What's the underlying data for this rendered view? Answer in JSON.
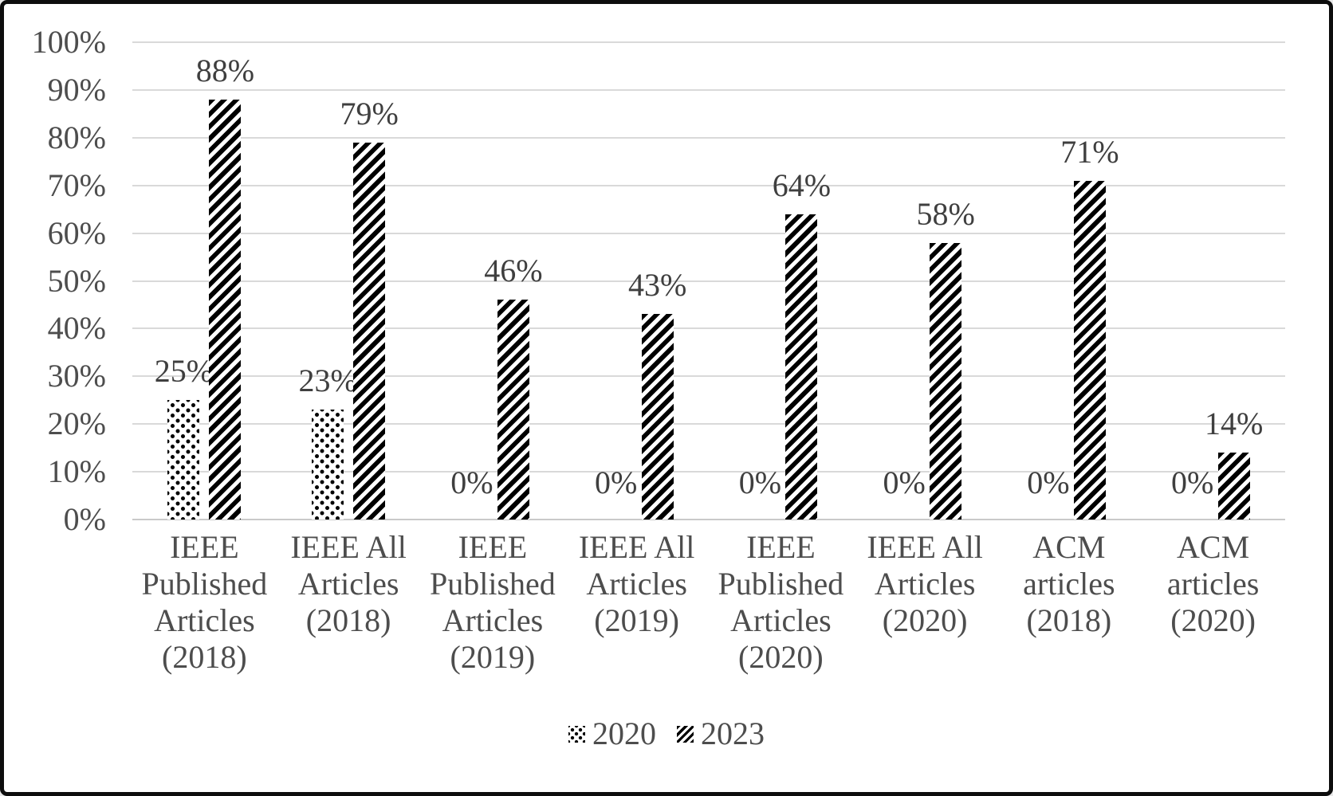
{
  "chart_data": {
    "type": "bar",
    "title": "",
    "xlabel": "",
    "ylabel": "",
    "categories": [
      "IEEE Published Articles (2018)",
      "IEEE All Articles (2018)",
      "IEEE Published Articles (2019)",
      "IEEE All Articles (2019)",
      "IEEE Published Articles (2020)",
      "IEEE All Articles (2020)",
      "ACM articles (2018)",
      "ACM articles (2020)"
    ],
    "category_display_lines": [
      [
        "IEEE",
        "Published",
        "Articles",
        "(2018)"
      ],
      [
        "IEEE All",
        "Articles",
        "(2018)"
      ],
      [
        "IEEE",
        "Published",
        "Articles",
        "(2019)"
      ],
      [
        "IEEE All",
        "Articles",
        "(2019)"
      ],
      [
        "IEEE",
        "Published",
        "Articles",
        "(2020)"
      ],
      [
        "IEEE All",
        "Articles",
        "(2020)"
      ],
      [
        "ACM",
        "articles",
        "(2018)"
      ],
      [
        "ACM",
        "articles",
        "(2020)"
      ]
    ],
    "series": [
      {
        "name": "2020",
        "pattern": "dotted",
        "values": [
          25,
          23,
          0,
          0,
          0,
          0,
          0,
          0
        ],
        "data_labels": [
          "25%",
          "23%",
          "0%",
          "0%",
          "0%",
          "0%",
          "0%",
          "0%"
        ]
      },
      {
        "name": "2023",
        "pattern": "diagonal",
        "values": [
          88,
          79,
          46,
          43,
          64,
          58,
          71,
          14
        ],
        "data_labels": [
          "88%",
          "79%",
          "46%",
          "43%",
          "64%",
          "58%",
          "71%",
          "14%"
        ]
      }
    ],
    "y_axis": {
      "min": 0,
      "max": 100,
      "tick_step": 10,
      "tick_labels": [
        "100%",
        "90%",
        "80%",
        "70%",
        "60%",
        "50%",
        "40%",
        "30%",
        "20%",
        "10%",
        "0%"
      ],
      "grid": true
    },
    "legend": {
      "position": "bottom",
      "entries": [
        {
          "label": "2020",
          "pattern": "dotted"
        },
        {
          "label": "2023",
          "pattern": "diagonal"
        }
      ]
    },
    "colors": {
      "pattern_foreground": "#000000",
      "background": "#ffffff",
      "gridline": "#d9d9d9",
      "axis_text": "#4d4d4d",
      "data_label_text": "#3f3f3f",
      "frame_border": "#0d0d0d"
    }
  }
}
